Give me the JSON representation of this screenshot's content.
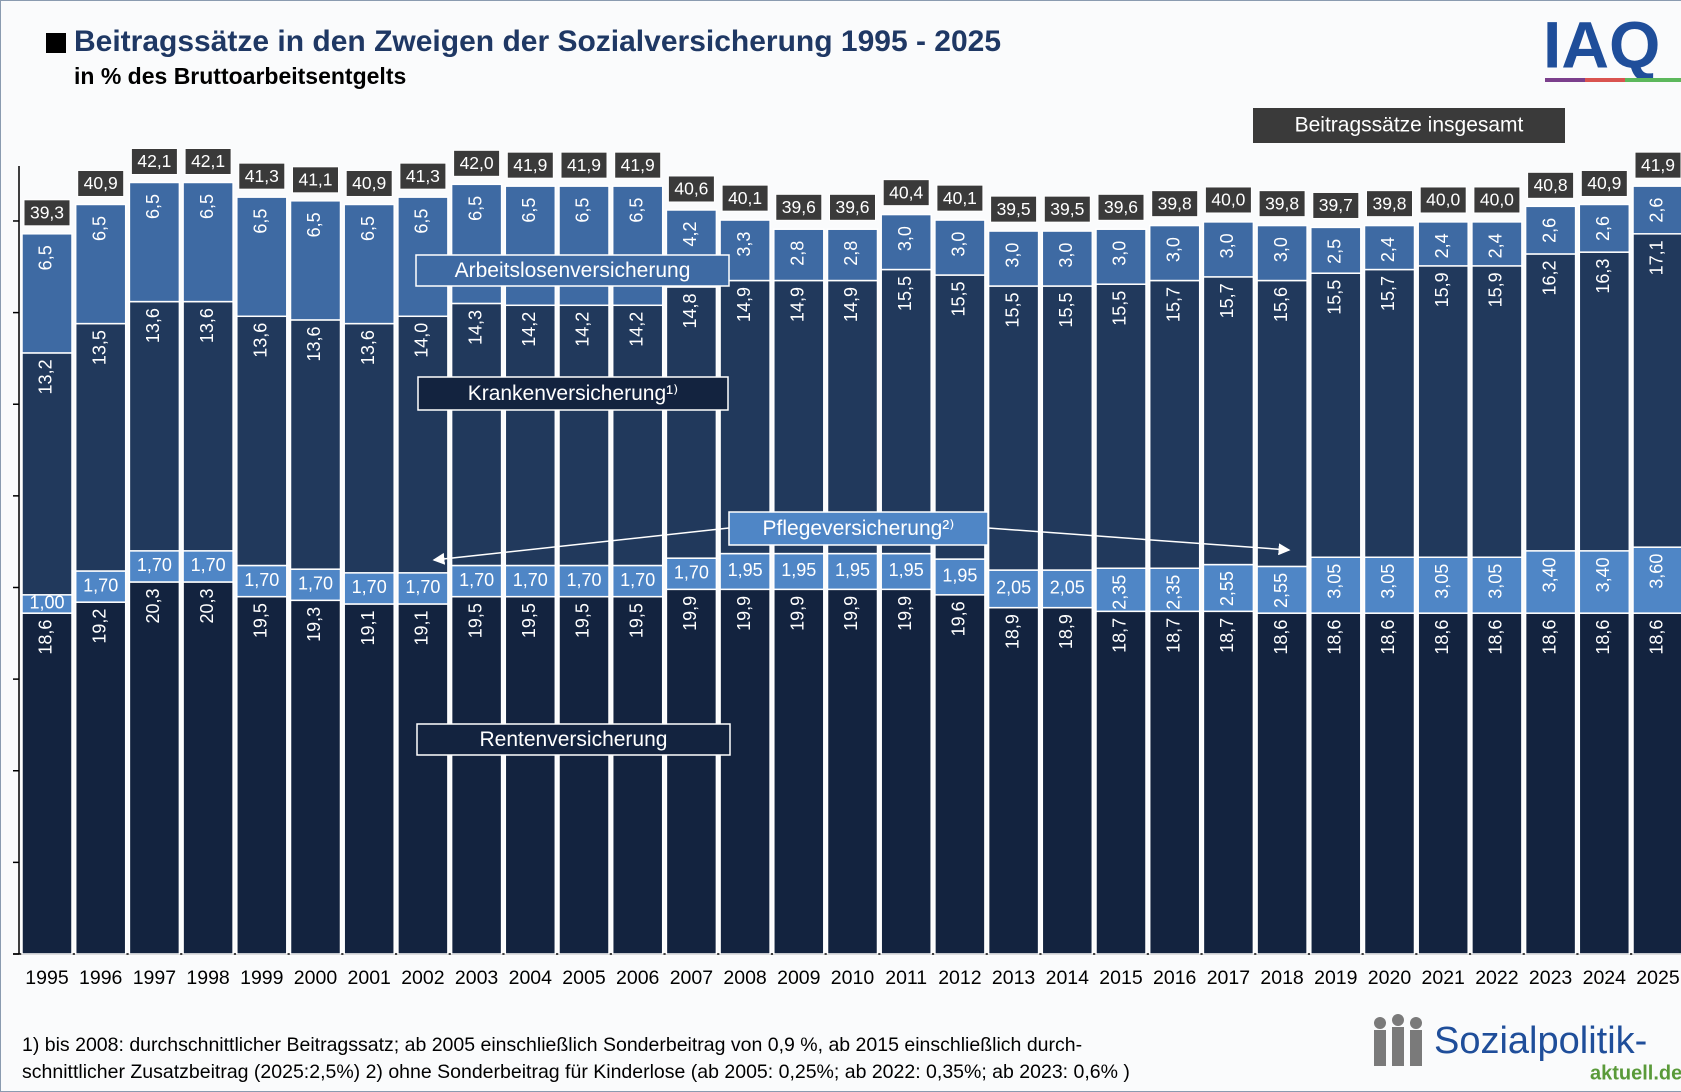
{
  "chart_data": {
    "type": "stacked_bar",
    "title": "Beitragssätze in den Zweigen der Sozialversicherung 1995 - 2025",
    "subtitle": "in % des Bruttoarbeitsentgelts",
    "logo": "IAQ",
    "source_logo": "Sozialpolitik-",
    "source_logo_sub": "aktuell.de",
    "footnotes": [
      "1) bis 2008: durchschnittlicher Beitragssatz; ab 2005 einschließlich Sonderbeitrag von 0,9 %, ab 2015 einschließlich durch-",
      "schnittlicher Zusatzbeitrag (2025:2,5%) 2) ohne Sonderbeitrag für Kinderlose (ab 2005: 0,25%; ab 2022: 0,35%; ab 2023: 0,6% )"
    ],
    "categories": [
      "1995",
      "1996",
      "1997",
      "1998",
      "1999",
      "2000",
      "2001",
      "2002",
      "2003",
      "2004",
      "2005",
      "2006",
      "2007",
      "2008",
      "2009",
      "2010",
      "2011",
      "2012",
      "2013",
      "2014",
      "2015",
      "2016",
      "2017",
      "2018",
      "2019",
      "2020",
      "2021",
      "2022",
      "2023",
      "2024",
      "2025"
    ],
    "ylim": [
      0,
      43
    ],
    "yticks": [
      0,
      5,
      10,
      15,
      20,
      25,
      30,
      35,
      40
    ],
    "series": [
      {
        "name": "Rentenversicherung",
        "color": "#13233f",
        "values": [
          18.6,
          19.2,
          20.3,
          20.3,
          19.5,
          19.3,
          19.1,
          19.1,
          19.5,
          19.5,
          19.5,
          19.5,
          19.9,
          19.9,
          19.9,
          19.9,
          19.9,
          19.6,
          18.9,
          18.9,
          18.7,
          18.7,
          18.7,
          18.6,
          18.6,
          18.6,
          18.6,
          18.6,
          18.6,
          18.6,
          18.6
        ],
        "value_labels": [
          "18,6",
          "19,2",
          "20,3",
          "20,3",
          "19,5",
          "19,3",
          "19,1",
          "19,1",
          "19,5",
          "19,5",
          "19,5",
          "19,5",
          "19,9",
          "19,9",
          "19,9",
          "19,9",
          "19,9",
          "19,6",
          "18,9",
          "18,9",
          "18,7",
          "18,7",
          "18,7",
          "18,6",
          "18,6",
          "18,6",
          "18,6",
          "18,6",
          "18,6",
          "18,6",
          "18,6"
        ]
      },
      {
        "name": "Pflegeversicherung²⁾",
        "color": "#4f86c6",
        "values": [
          1.0,
          1.7,
          1.7,
          1.7,
          1.7,
          1.7,
          1.7,
          1.7,
          1.7,
          1.7,
          1.7,
          1.7,
          1.7,
          1.95,
          1.95,
          1.95,
          1.95,
          1.95,
          2.05,
          2.05,
          2.35,
          2.35,
          2.55,
          2.55,
          3.05,
          3.05,
          3.05,
          3.05,
          3.4,
          3.4,
          3.6
        ],
        "value_labels": [
          "1,00",
          "1,70",
          "1,70",
          "1,70",
          "1,70",
          "1,70",
          "1,70",
          "1,70",
          "1,70",
          "1,70",
          "1,70",
          "1,70",
          "1,70",
          "1,95",
          "1,95",
          "1,95",
          "1,95",
          "1,95",
          "2,05",
          "2,05",
          "2,35",
          "2,35",
          "2,55",
          "2,55",
          "3,05",
          "3,05",
          "3,05",
          "3,05",
          "3,40",
          "3,40",
          "3,60"
        ]
      },
      {
        "name": "Krankenversicherung¹⁾",
        "color": "#21395c",
        "values": [
          13.2,
          13.5,
          13.6,
          13.6,
          13.6,
          13.6,
          13.6,
          14.0,
          14.3,
          14.2,
          14.2,
          14.2,
          14.8,
          14.9,
          14.9,
          14.9,
          15.5,
          15.5,
          15.5,
          15.5,
          15.5,
          15.7,
          15.7,
          15.6,
          15.5,
          15.7,
          15.9,
          15.9,
          16.2,
          16.3,
          17.1
        ],
        "value_labels": [
          "13,2",
          "13,5",
          "13,6",
          "13,6",
          "13,6",
          "13,6",
          "13,6",
          "14,0",
          "14,3",
          "14,2",
          "14,2",
          "14,2",
          "14,8",
          "14,9",
          "14,9",
          "14,9",
          "15,5",
          "15,5",
          "15,5",
          "15,5",
          "15,5",
          "15,7",
          "15,7",
          "15,6",
          "15,5",
          "15,7",
          "15,9",
          "15,9",
          "16,2",
          "16,3",
          "17,1"
        ]
      },
      {
        "name": "Arbeitslosenversicherung",
        "color": "#3e6aa3",
        "values": [
          6.5,
          6.5,
          6.5,
          6.5,
          6.5,
          6.5,
          6.5,
          6.5,
          6.5,
          6.5,
          6.5,
          6.5,
          4.2,
          3.3,
          2.8,
          2.8,
          3.0,
          3.0,
          3.0,
          3.0,
          3.0,
          3.0,
          3.0,
          3.0,
          2.5,
          2.4,
          2.4,
          2.4,
          2.6,
          2.6,
          2.6
        ],
        "value_labels": [
          "6,5",
          "6,5",
          "6,5",
          "6,5",
          "6,5",
          "6,5",
          "6,5",
          "6,5",
          "6,5",
          "6,5",
          "6,5",
          "6,5",
          "4,2",
          "3,3",
          "2,8",
          "2,8",
          "3,0",
          "3,0",
          "3,0",
          "3,0",
          "3,0",
          "3,0",
          "3,0",
          "3,0",
          "2,5",
          "2,4",
          "2,4",
          "2,4",
          "2,6",
          "2,6",
          "2,6"
        ]
      }
    ],
    "totals": {
      "name": "Beitragssätze insgesamt",
      "color": "#3a3a3a",
      "values": [
        39.3,
        40.9,
        42.1,
        42.1,
        41.3,
        41.1,
        40.9,
        41.3,
        42.0,
        41.9,
        41.9,
        41.9,
        40.6,
        40.1,
        39.6,
        39.6,
        40.4,
        40.1,
        39.5,
        39.5,
        39.6,
        39.8,
        40.0,
        39.8,
        39.7,
        39.8,
        40.0,
        40.0,
        40.8,
        40.9,
        41.9
      ],
      "value_labels": [
        "39,3",
        "40,9",
        "42,1",
        "42,1",
        "41,3",
        "41,1",
        "40,9",
        "41,3",
        "42,0",
        "41,9",
        "41,9",
        "41,9",
        "40,6",
        "40,1",
        "39,6",
        "39,6",
        "40,4",
        "40,1",
        "39,5",
        "39,5",
        "39,6",
        "39,8",
        "40,0",
        "39,8",
        "39,7",
        "39,8",
        "40,0",
        "40,0",
        "40,8",
        "40,9",
        "41,9"
      ]
    }
  }
}
